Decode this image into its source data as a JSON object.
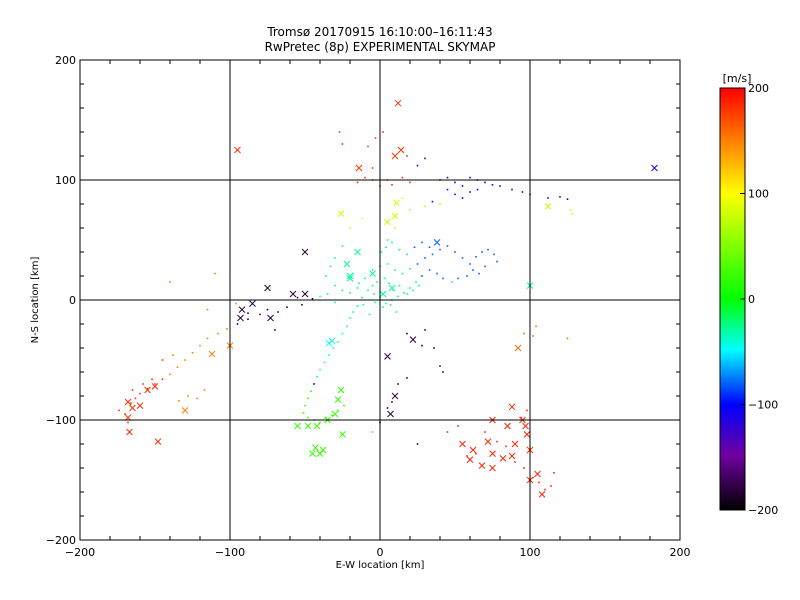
{
  "chart_data": {
    "type": "scatter",
    "title": "Tromsø 20170915 16:10:00–16:11:43",
    "subtitle": "RwPretec (8p) EXPERIMENTAL SKYMAP",
    "xlabel": "E-W location [km]",
    "ylabel": "N-S location [km]",
    "xlim": [
      -200,
      200
    ],
    "ylim": [
      -200,
      200
    ],
    "xticks": [
      -200,
      -100,
      0,
      100,
      200
    ],
    "yticks": [
      -200,
      -100,
      0,
      100,
      200
    ],
    "grid": true,
    "colorbar": {
      "label": "[m/s]",
      "range": [
        -200,
        200
      ],
      "ticks": [
        200,
        100,
        0,
        -100,
        -200
      ],
      "colormap": "rainbow"
    },
    "series": [
      {
        "marker": "x",
        "points": [
          [
            12,
            164
          ],
          [
            -95,
            125
          ],
          [
            183,
            110
          ],
          [
            10,
            120
          ],
          [
            14,
            125
          ],
          [
            112,
            78
          ],
          [
            -26,
            72
          ],
          [
            5,
            65
          ],
          [
            10,
            70
          ],
          [
            38,
            48
          ],
          [
            -20,
            18
          ],
          [
            -22,
            30
          ],
          [
            -75,
            10
          ],
          [
            -58,
            5
          ],
          [
            -50,
            5
          ],
          [
            -85,
            -3
          ],
          [
            -92,
            -8
          ],
          [
            -93,
            -15
          ],
          [
            -73,
            -15
          ],
          [
            -100,
            -38
          ],
          [
            -112,
            -45
          ],
          [
            2,
            5
          ],
          [
            8,
            10
          ],
          [
            -15,
            40
          ],
          [
            -20,
            20
          ],
          [
            5,
            -47
          ],
          [
            22,
            -33
          ],
          [
            92,
            -40
          ],
          [
            100,
            12
          ],
          [
            -168,
            -85
          ],
          [
            -165,
            -90
          ],
          [
            -160,
            -88
          ],
          [
            -155,
            -75
          ],
          [
            -150,
            -72
          ],
          [
            -168,
            -98
          ],
          [
            -167,
            -110
          ],
          [
            -148,
            -118
          ],
          [
            -130,
            -92
          ],
          [
            -26,
            -75
          ],
          [
            -28,
            -83
          ],
          [
            -30,
            -95
          ],
          [
            -35,
            -100
          ],
          [
            -42,
            -105
          ],
          [
            -48,
            -105
          ],
          [
            -55,
            -105
          ],
          [
            -43,
            -123
          ],
          [
            -38,
            -125
          ],
          [
            -40,
            -128
          ],
          [
            -25,
            -112
          ],
          [
            -45,
            -128
          ],
          [
            7,
            -95
          ],
          [
            10,
            -80
          ],
          [
            55,
            -120
          ],
          [
            62,
            -125
          ],
          [
            68,
            -138
          ],
          [
            75,
            -140
          ],
          [
            75,
            -128
          ],
          [
            82,
            -132
          ],
          [
            88,
            -130
          ],
          [
            90,
            -120
          ],
          [
            95,
            -100
          ],
          [
            97,
            -105
          ],
          [
            98,
            -112
          ],
          [
            100,
            -125
          ],
          [
            100,
            -150
          ],
          [
            105,
            -145
          ],
          [
            108,
            -162
          ],
          [
            75,
            -100
          ],
          [
            85,
            -105
          ],
          [
            88,
            -89
          ],
          [
            60,
            -133
          ],
          [
            72,
            -118
          ],
          [
            -34,
            -36
          ],
          [
            -32,
            -34
          ],
          [
            -50,
            40
          ],
          [
            -5,
            22
          ],
          [
            11,
            81
          ],
          [
            -14,
            110
          ]
        ]
      },
      {
        "marker": "dot",
        "points": [
          [
            -5,
            100
          ],
          [
            0,
            95
          ],
          [
            5,
            100
          ],
          [
            -10,
            102
          ],
          [
            -15,
            98
          ],
          [
            8,
            96
          ],
          [
            15,
            102
          ],
          [
            20,
            98
          ],
          [
            -3,
            135
          ],
          [
            2,
            140
          ],
          [
            -8,
            128
          ],
          [
            18,
            120
          ],
          [
            25,
            112
          ],
          [
            30,
            118
          ],
          [
            40,
            100
          ],
          [
            45,
            102
          ],
          [
            50,
            98
          ],
          [
            55,
            95
          ],
          [
            60,
            102
          ],
          [
            65,
            100
          ],
          [
            70,
            98
          ],
          [
            75,
            96
          ],
          [
            80,
            95
          ],
          [
            88,
            92
          ],
          [
            95,
            90
          ],
          [
            100,
            88
          ],
          [
            112,
            85
          ],
          [
            120,
            86
          ],
          [
            125,
            84
          ],
          [
            127,
            75
          ],
          [
            128,
            72
          ],
          [
            45,
            92
          ],
          [
            50,
            88
          ],
          [
            55,
            85
          ],
          [
            60,
            90
          ],
          [
            65,
            92
          ],
          [
            35,
            82
          ],
          [
            40,
            80
          ],
          [
            30,
            78
          ],
          [
            -27,
            140
          ],
          [
            -25,
            130
          ],
          [
            -5,
            110
          ],
          [
            15,
            85
          ],
          [
            20,
            75
          ],
          [
            10,
            60
          ],
          [
            5,
            50
          ],
          [
            -12,
            68
          ],
          [
            -20,
            60
          ],
          [
            -25,
            45
          ],
          [
            -30,
            35
          ],
          [
            -33,
            28
          ],
          [
            -36,
            20
          ],
          [
            -30,
            12
          ],
          [
            -25,
            8
          ],
          [
            -20,
            6
          ],
          [
            -15,
            10
          ],
          [
            -10,
            18
          ],
          [
            -5,
            25
          ],
          [
            0,
            28
          ],
          [
            5,
            30
          ],
          [
            10,
            25
          ],
          [
            15,
            22
          ],
          [
            20,
            26
          ],
          [
            25,
            30
          ],
          [
            30,
            35
          ],
          [
            35,
            38
          ],
          [
            40,
            42
          ],
          [
            45,
            45
          ],
          [
            50,
            40
          ],
          [
            55,
            35
          ],
          [
            60,
            30
          ],
          [
            62,
            25
          ],
          [
            58,
            20
          ],
          [
            52,
            18
          ],
          [
            48,
            15
          ],
          [
            42,
            18
          ],
          [
            38,
            22
          ],
          [
            33,
            25
          ],
          [
            28,
            20
          ],
          [
            24,
            15
          ],
          [
            20,
            10
          ],
          [
            16,
            6
          ],
          [
            12,
            3
          ],
          [
            8,
            0
          ],
          [
            4,
            -3
          ],
          [
            0,
            2
          ],
          [
            -4,
            5
          ],
          [
            -8,
            8
          ],
          [
            -12,
            2
          ],
          [
            -15,
            -5
          ],
          [
            -18,
            -10
          ],
          [
            -20,
            -15
          ],
          [
            -22,
            -22
          ],
          [
            -25,
            -28
          ],
          [
            -28,
            -35
          ],
          [
            -31,
            -40
          ],
          [
            -34,
            -46
          ],
          [
            -37,
            -52
          ],
          [
            -40,
            -58
          ],
          [
            -42,
            -64
          ],
          [
            -44,
            -70
          ],
          [
            -46,
            -76
          ],
          [
            -48,
            -82
          ],
          [
            -50,
            -88
          ],
          [
            -51,
            -94
          ],
          [
            -48,
            -98
          ],
          [
            -44,
            -100
          ],
          [
            -40,
            -102
          ],
          [
            -36,
            -98
          ],
          [
            -32,
            -96
          ],
          [
            -28,
            -92
          ],
          [
            -24,
            -88
          ],
          [
            -5,
            12
          ],
          [
            -2,
            15
          ],
          [
            3,
            18
          ],
          [
            6,
            14
          ],
          [
            9,
            8
          ],
          [
            13,
            12
          ],
          [
            18,
            5
          ],
          [
            22,
            8
          ],
          [
            26,
            12
          ],
          [
            -3,
            -2
          ],
          [
            2,
            -6
          ],
          [
            7,
            -4
          ],
          [
            11,
            -10
          ],
          [
            -7,
            -12
          ],
          [
            -11,
            -4
          ],
          [
            -14,
            14
          ],
          [
            -18,
            22
          ],
          [
            1,
            40
          ],
          [
            4,
            44
          ],
          [
            8,
            48
          ],
          [
            13,
            42
          ],
          [
            18,
            38
          ],
          [
            23,
            44
          ],
          [
            28,
            48
          ],
          [
            33,
            44
          ],
          [
            64,
            36
          ],
          [
            68,
            40
          ],
          [
            72,
            42
          ],
          [
            76,
            38
          ],
          [
            78,
            32
          ],
          [
            70,
            28
          ],
          [
            66,
            22
          ],
          [
            -30,
            -2
          ],
          [
            -35,
            5
          ],
          [
            -40,
            3
          ],
          [
            -45,
            1
          ],
          [
            -52,
            -4
          ],
          [
            -55,
            2
          ],
          [
            -62,
            -6
          ],
          [
            -68,
            -10
          ],
          [
            -75,
            -8
          ],
          [
            -80,
            -12
          ],
          [
            -88,
            -16
          ],
          [
            -95,
            -20
          ],
          [
            -102,
            -24
          ],
          [
            -108,
            -28
          ],
          [
            -115,
            -32
          ],
          [
            -120,
            -38
          ],
          [
            -125,
            -44
          ],
          [
            -130,
            -50
          ],
          [
            -135,
            -56
          ],
          [
            -140,
            -62
          ],
          [
            -145,
            -66
          ],
          [
            -150,
            -70
          ],
          [
            -155,
            -74
          ],
          [
            -160,
            -78
          ],
          [
            -163,
            -82
          ],
          [
            -166,
            -86
          ],
          [
            -140,
            15
          ],
          [
            -110,
            22
          ],
          [
            -96,
            -3
          ],
          [
            -88,
            -11
          ],
          [
            -115,
            -8
          ],
          [
            -70,
            -25
          ],
          [
            30,
            -25
          ],
          [
            36,
            -40
          ],
          [
            40,
            -55
          ],
          [
            42,
            -60
          ],
          [
            28,
            -38
          ],
          [
            18,
            -28
          ],
          [
            -5,
            -110
          ],
          [
            0,
            -102
          ],
          [
            5,
            -90
          ],
          [
            8,
            -85
          ],
          [
            12,
            -70
          ],
          [
            18,
            -65
          ],
          [
            25,
            -120
          ],
          [
            45,
            -110
          ],
          [
            52,
            -105
          ],
          [
            58,
            -130
          ],
          [
            64,
            -128
          ],
          [
            70,
            -110
          ],
          [
            78,
            -118
          ],
          [
            84,
            -122
          ],
          [
            90,
            -135
          ],
          [
            96,
            -140
          ],
          [
            102,
            -148
          ],
          [
            106,
            -152
          ],
          [
            110,
            -158
          ],
          [
            114,
            -155
          ],
          [
            116,
            -144
          ],
          [
            98,
            -92
          ],
          [
            94,
            -98
          ],
          [
            102,
            -30
          ],
          [
            125,
            -32
          ],
          [
            104,
            -22
          ],
          [
            96,
            -28
          ],
          [
            -170,
            -95
          ],
          [
            -168,
            -102
          ],
          [
            -174,
            -92
          ],
          [
            -165,
            -75
          ],
          [
            -158,
            -70
          ],
          [
            -152,
            -66
          ],
          [
            -134,
            -84
          ],
          [
            -128,
            -80
          ],
          [
            -122,
            -82
          ],
          [
            -117,
            -75
          ],
          [
            -145,
            -50
          ],
          [
            -138,
            -46
          ]
        ]
      }
    ]
  }
}
